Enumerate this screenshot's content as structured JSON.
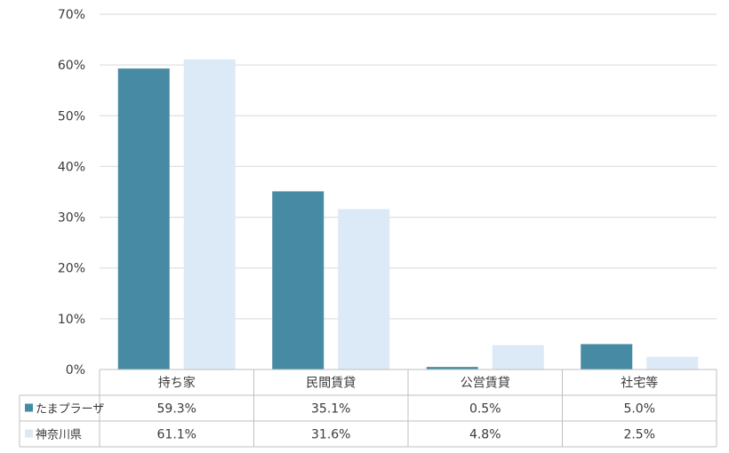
{
  "chart_data": {
    "type": "bar",
    "title": "",
    "xlabel": "",
    "ylabel": "",
    "categories": [
      "持ち家",
      "民間賃貸",
      "公営賃貸",
      "社宅等"
    ],
    "series": [
      {
        "name": "たまプラーザ",
        "values": [
          59.3,
          35.1,
          0.5,
          5.0
        ],
        "labels": [
          "59.3%",
          "35.1%",
          "0.5%",
          "5.0%"
        ],
        "color": "#468ba3"
      },
      {
        "name": "神奈川県",
        "values": [
          61.1,
          31.6,
          4.8,
          2.5
        ],
        "labels": [
          "61.1%",
          "31.6%",
          "4.8%",
          "2.5%"
        ],
        "color": "#dce9f6"
      }
    ],
    "ylim": [
      0,
      70
    ],
    "yticks": [
      0,
      10,
      20,
      30,
      40,
      50,
      60,
      70
    ],
    "ytick_labels": [
      "0%",
      "10%",
      "20%",
      "30%",
      "40%",
      "50%",
      "60%",
      "70%"
    ],
    "grid": true,
    "legend": "data-table"
  }
}
